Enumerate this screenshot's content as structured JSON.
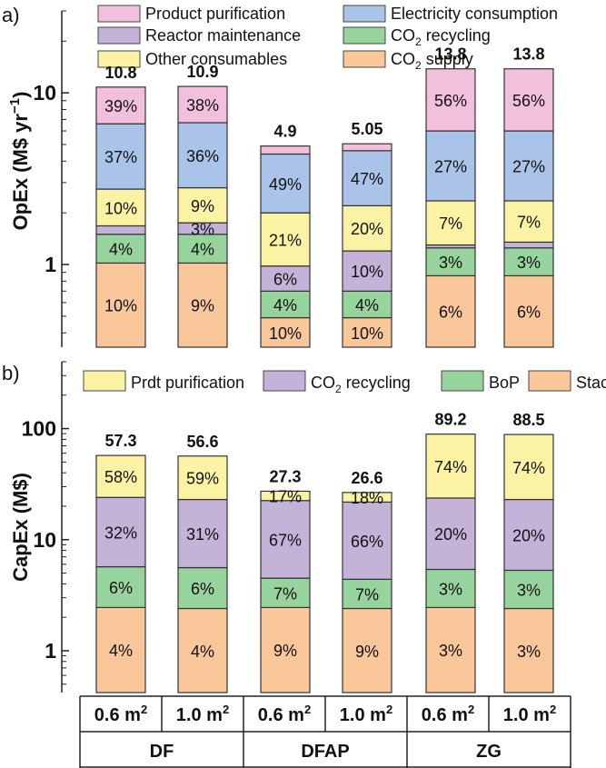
{
  "chart_data": [
    {
      "type": "bar",
      "stacked": true,
      "panel_label": "a)",
      "ylabel": "OpEx (M$ yr",
      "ylabel_sup": "−1",
      "ylabel_close": ")",
      "yscale": "log",
      "ylim": [
        0.33,
        30
      ],
      "yticks": [
        {
          "value": 1,
          "label": "1"
        },
        {
          "value": 10,
          "label": "10"
        }
      ],
      "legend_position": "top",
      "legend": [
        {
          "name": "Product purification",
          "color": "#f2bfdd"
        },
        {
          "name": "Electricity consumption",
          "color": "#a9c4e8"
        },
        {
          "name": "Reactor maintenance",
          "color": "#c4b3d8"
        },
        {
          "name_main": "CO",
          "name_sub": "2",
          "name_rest": " recycling",
          "color": "#97d39c"
        },
        {
          "name": "Other consumables",
          "color": "#fbf3a3"
        },
        {
          "name_main": "CO",
          "name_sub": "2",
          "name_rest": " supply",
          "color": "#f9c79a"
        }
      ],
      "stack_order": [
        "CO2 supply",
        "CO2 recycling",
        "Reactor maintenance",
        "Other consumables",
        "Electricity consumption",
        "Product purification"
      ],
      "bars": [
        {
          "total": 10.8,
          "total_label": "10.8",
          "bounds": [
            0.33,
            1.02,
            1.5,
            1.68,
            2.75,
            6.6,
            10.8
          ],
          "labels": [
            "10%",
            "4%",
            "",
            "10%",
            "37%",
            "39%"
          ]
        },
        {
          "total": 10.9,
          "total_label": "10.9",
          "bounds": [
            0.33,
            1.02,
            1.5,
            1.75,
            2.8,
            6.7,
            10.9
          ],
          "labels": [
            "9%",
            "4%",
            "3%",
            "9%",
            "36%",
            "38%"
          ]
        },
        {
          "total": 4.9,
          "total_label": "4.9",
          "bounds": [
            0.33,
            0.49,
            0.7,
            0.98,
            2.0,
            4.4,
            4.9
          ],
          "labels": [
            "10%",
            "4%",
            "6%",
            "21%",
            "49%",
            ""
          ]
        },
        {
          "total": 5.05,
          "total_label": "5.05",
          "bounds": [
            0.33,
            0.49,
            0.7,
            1.2,
            2.2,
            4.6,
            5.05
          ],
          "labels": [
            "10%",
            "4%",
            "10%",
            "20%",
            "47%",
            ""
          ]
        },
        {
          "total": 13.8,
          "total_label": "13.8",
          "bounds": [
            0.33,
            0.86,
            1.25,
            1.3,
            2.35,
            6.0,
            13.8
          ],
          "labels": [
            "6%",
            "3%",
            "",
            "7%",
            "27%",
            "56%"
          ]
        },
        {
          "total": 13.8,
          "total_label": "13.8",
          "bounds": [
            0.33,
            0.86,
            1.25,
            1.35,
            2.35,
            6.0,
            13.8
          ],
          "labels": [
            "6%",
            "3%",
            "",
            "7%",
            "27%",
            "56%"
          ]
        }
      ]
    },
    {
      "type": "bar",
      "stacked": true,
      "panel_label": "b)",
      "ylabel": "CapEx (M$)",
      "yscale": "log",
      "ylim": [
        0.42,
        400
      ],
      "yticks": [
        {
          "value": 1,
          "label": "1"
        },
        {
          "value": 10,
          "label": "10"
        },
        {
          "value": 100,
          "label": "100"
        }
      ],
      "legend_position": "top",
      "legend": [
        {
          "name": "Prdt purification",
          "color": "#fbf3a3"
        },
        {
          "name_main": "CO",
          "name_sub": "2",
          "name_rest": " recycling",
          "color": "#c4b3d8"
        },
        {
          "name": "BoP",
          "color": "#97d39c"
        },
        {
          "name": "Stack",
          "color": "#f9c79a"
        }
      ],
      "stack_order": [
        "Stack",
        "BoP",
        "CO2 recycling",
        "Prdt purification"
      ],
      "bars": [
        {
          "total": 57.3,
          "total_label": "57.3",
          "bounds": [
            0.42,
            2.45,
            5.7,
            24,
            57.3
          ],
          "labels": [
            "4%",
            "6%",
            "32%",
            "58%"
          ]
        },
        {
          "total": 56.6,
          "total_label": "56.6",
          "bounds": [
            0.42,
            2.4,
            5.6,
            23,
            56.6
          ],
          "labels": [
            "4%",
            "6%",
            "31%",
            "59%"
          ]
        },
        {
          "total": 27.3,
          "total_label": "27.3",
          "bounds": [
            0.42,
            2.45,
            4.5,
            22.5,
            27.3
          ],
          "labels": [
            "9%",
            "7%",
            "67%",
            "17%"
          ]
        },
        {
          "total": 26.6,
          "total_label": "26.6",
          "bounds": [
            0.42,
            2.4,
            4.4,
            21.8,
            26.6
          ],
          "labels": [
            "9%",
            "7%",
            "66%",
            "18%"
          ]
        },
        {
          "total": 89.2,
          "total_label": "89.2",
          "bounds": [
            0.42,
            2.45,
            5.4,
            23.7,
            89.2
          ],
          "labels": [
            "3%",
            "3%",
            "20%",
            "74%"
          ]
        },
        {
          "total": 88.5,
          "total_label": "88.5",
          "bounds": [
            0.42,
            2.4,
            5.3,
            23,
            88.5
          ],
          "labels": [
            "3%",
            "3%",
            "20%",
            "74%"
          ]
        }
      ]
    }
  ],
  "xaxis": {
    "area_labels": [
      {
        "main": "0.6 m",
        "sup": "2"
      },
      {
        "main": "1.0 m",
        "sup": "2"
      },
      {
        "main": "0.6 m",
        "sup": "2"
      },
      {
        "main": "1.0 m",
        "sup": "2"
      },
      {
        "main": "0.6 m",
        "sup": "2"
      },
      {
        "main": "1.0 m",
        "sup": "2"
      }
    ],
    "groups": [
      "DF",
      "DFAP",
      "ZG"
    ]
  }
}
